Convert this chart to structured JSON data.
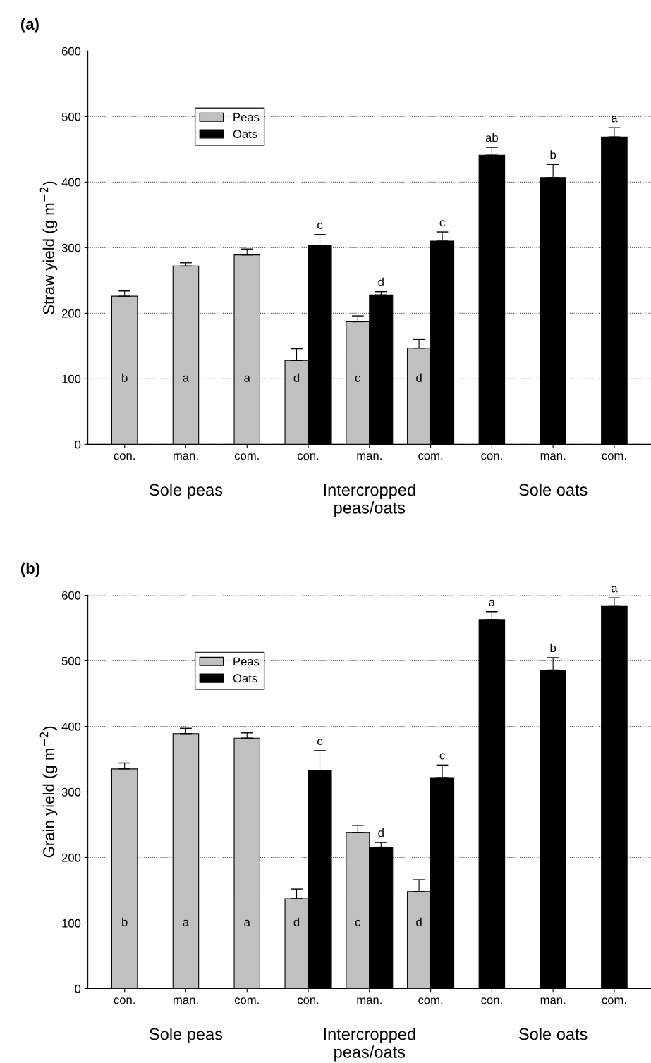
{
  "chart_data": [
    {
      "type": "bar",
      "title": "(a)",
      "ylabel": "Straw yield (g m$^{−2}$)",
      "categories": [
        "con.",
        "man.",
        "com.",
        "con.",
        "man.",
        "com.",
        "con.",
        "man.",
        "com."
      ],
      "series": [
        {
          "name": "Peas",
          "color": "#c0c0c0",
          "values": [
            226,
            272,
            289,
            128,
            187,
            147,
            null,
            null,
            null
          ],
          "errors": [
            8,
            5,
            9,
            18,
            9,
            13,
            null,
            null,
            null
          ],
          "value_labels": [
            "b",
            "a",
            "a",
            "d",
            "c",
            "d",
            null,
            null,
            null
          ]
        },
        {
          "name": "Oats",
          "color": "#000000",
          "values": [
            null,
            null,
            null,
            304,
            228,
            310,
            441,
            407,
            469
          ],
          "errors": [
            null,
            null,
            null,
            16,
            5,
            14,
            12,
            20,
            14
          ],
          "value_labels": [
            null,
            null,
            null,
            "c",
            "d",
            "c",
            "ab",
            "b",
            "a"
          ]
        }
      ],
      "ylim": [
        0,
        600
      ],
      "yticks": [
        0,
        100,
        200,
        300,
        400,
        500,
        600
      ],
      "grid": "y",
      "legend": "top left",
      "annotations": [
        "Sole peas",
        "Intercropped\npeas/oats",
        "Sole oats"
      ]
    },
    {
      "type": "bar",
      "title": "(b)",
      "ylabel": "Grain yield (g m$^{−2}$)",
      "categories": [
        "con.",
        "man.",
        "com.",
        "con.",
        "man.",
        "com.",
        "con.",
        "man.",
        "com."
      ],
      "series": [
        {
          "name": "Peas",
          "color": "#c0c0c0",
          "values": [
            335,
            389,
            382,
            137,
            238,
            148,
            null,
            null,
            null
          ],
          "errors": [
            9,
            8,
            8,
            15,
            11,
            18,
            null,
            null,
            null
          ],
          "value_labels": [
            "b",
            "a",
            "a",
            "d",
            "c",
            "d",
            null,
            null,
            null
          ]
        },
        {
          "name": "Oats",
          "color": "#000000",
          "values": [
            null,
            null,
            null,
            333,
            216,
            322,
            563,
            486,
            584
          ],
          "errors": [
            null,
            null,
            null,
            30,
            7,
            19,
            12,
            19,
            12
          ],
          "value_labels": [
            null,
            null,
            null,
            "c",
            "d",
            "c",
            "a",
            "b",
            "a"
          ]
        }
      ],
      "ylim": [
        0,
        600
      ],
      "yticks": [
        0,
        100,
        200,
        300,
        400,
        500,
        600
      ],
      "grid": "y",
      "legend": "top left",
      "annotations": [
        "Sole peas",
        "Intercropped\npeas/oats",
        "Sole oats"
      ]
    }
  ]
}
